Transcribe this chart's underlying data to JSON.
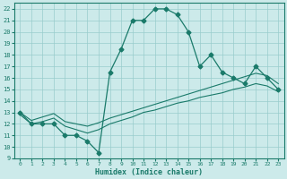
{
  "xlabel": "Humidex (Indice chaleur)",
  "x_values": [
    0,
    1,
    2,
    3,
    4,
    5,
    6,
    7,
    8,
    9,
    10,
    11,
    12,
    13,
    14,
    15,
    16,
    17,
    18,
    19,
    20,
    21,
    22,
    23
  ],
  "y_main": [
    13,
    12,
    12,
    12,
    11,
    11,
    10.5,
    9.5,
    16.5,
    18.5,
    21,
    21,
    22,
    22,
    21.5,
    20,
    17,
    18,
    16.5,
    16,
    15.5,
    17,
    16,
    15
  ],
  "y_trend1": [
    13,
    12.3,
    12.6,
    12.9,
    12.2,
    12.0,
    11.8,
    12.1,
    12.5,
    12.8,
    13.1,
    13.4,
    13.7,
    14.0,
    14.3,
    14.6,
    14.9,
    15.2,
    15.5,
    15.8,
    16.1,
    16.4,
    16.2,
    15.5
  ],
  "y_trend2": [
    12.8,
    12.0,
    12.2,
    12.5,
    11.8,
    11.5,
    11.2,
    11.5,
    12.0,
    12.3,
    12.6,
    13.0,
    13.2,
    13.5,
    13.8,
    14.0,
    14.3,
    14.5,
    14.7,
    15.0,
    15.2,
    15.5,
    15.3,
    14.8
  ],
  "ylim": [
    9,
    22.5
  ],
  "xlim": [
    -0.5,
    23.5
  ],
  "yticks": [
    9,
    10,
    11,
    12,
    13,
    14,
    15,
    16,
    17,
    18,
    19,
    20,
    21,
    22
  ],
  "xticks": [
    0,
    1,
    2,
    3,
    4,
    5,
    6,
    7,
    8,
    9,
    10,
    11,
    12,
    13,
    14,
    15,
    16,
    17,
    18,
    19,
    20,
    21,
    22,
    23
  ],
  "line_color": "#1a7a6a",
  "bg_color": "#cceaea",
  "grid_color": "#99cccc",
  "marker_size": 2.5
}
